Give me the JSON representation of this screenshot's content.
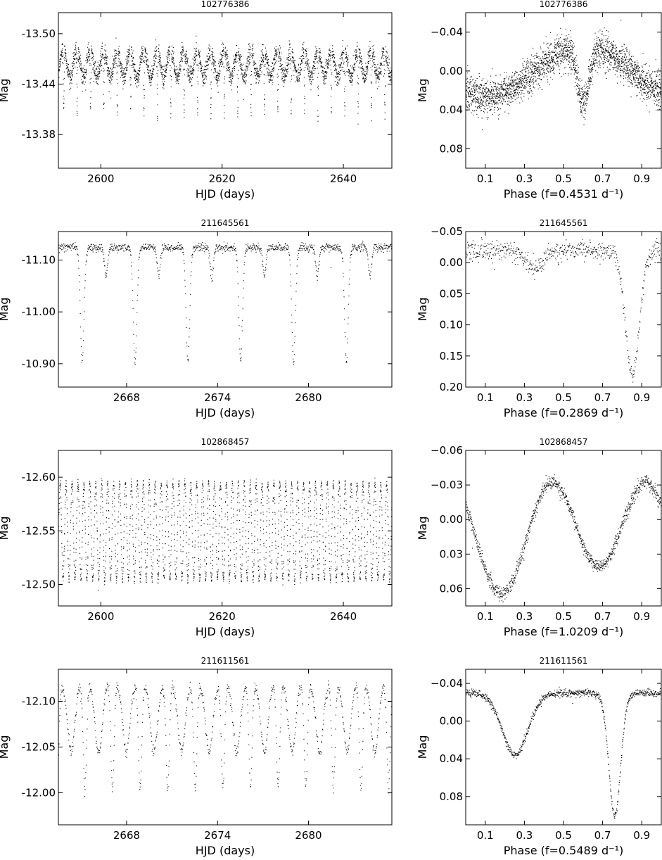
{
  "figure": {
    "layout": "4 rows x 2 columns; left: light curves, right: phase-folded curves",
    "point_color": "#000000"
  },
  "chart_data": [
    {
      "type": "scatter",
      "panel": "row1-left",
      "title": "102776386",
      "xlabel": "HJD (days)",
      "ylabel": "Mag",
      "xlim": [
        2593,
        2648
      ],
      "ylim": [
        -13.34,
        -13.525
      ],
      "y_inverted": true,
      "xticks": [
        2600,
        2620,
        2640
      ],
      "xtick_labels": [
        "2600",
        "2620",
        "2640"
      ],
      "yticks": [
        -13.5,
        -13.44,
        -13.38
      ],
      "ytick_labels": [
        "-13.50",
        "-13.44",
        "-13.38"
      ],
      "series": [
        {
          "kind": "lightcurve",
          "generator": {
            "x_start": 2593,
            "x_end": 2648,
            "step": 0.017
          },
          "period": 2.207,
          "phase0": 0.35,
          "base": -13.465,
          "amplitude": 0.016,
          "minima": [
            {
              "phase": 0.62,
              "depth": 0.075,
              "width": 0.025
            }
          ],
          "noise": 0.006
        }
      ]
    },
    {
      "type": "scatter",
      "panel": "row1-right",
      "title": "102776386",
      "xlabel": "Phase (f=0.4531 d⁻¹)",
      "ylabel": "Mag",
      "xlim": [
        0.0,
        1.0
      ],
      "ylim": [
        0.1,
        -0.06
      ],
      "y_inverted": true,
      "xticks": [
        0.1,
        0.3,
        0.5,
        0.7,
        0.9
      ],
      "xtick_labels": [
        "0.1",
        "0.3",
        "0.5",
        "0.7",
        "0.9"
      ],
      "yticks": [
        -0.04,
        0.0,
        0.04,
        0.08
      ],
      "ytick_labels": [
        "−0.04",
        "0.00",
        "0.04",
        "0.08"
      ],
      "series": [
        {
          "kind": "phase",
          "generator": {
            "x_start": 0.0,
            "x_end": 1.0,
            "step": 0.0004
          },
          "base": 0.0,
          "amplitude": 0.026,
          "minima": [
            {
              "phase": 0.6,
              "depth": 0.058,
              "width": 0.03
            }
          ],
          "noise": 0.009
        }
      ]
    },
    {
      "type": "scatter",
      "panel": "row2-left",
      "title": "211645561",
      "xlabel": "HJD (days)",
      "ylabel": "Mag",
      "xlim": [
        2663.5,
        2685.5
      ],
      "ylim": [
        -10.855,
        -11.155
      ],
      "y_inverted": true,
      "xticks": [
        2668,
        2674,
        2680
      ],
      "xtick_labels": [
        "2668",
        "2674",
        "2680"
      ],
      "yticks": [
        -11.1,
        -11.0,
        -10.9
      ],
      "ytick_labels": [
        "-11.10",
        "-11.00",
        "-10.90"
      ],
      "series": [
        {
          "kind": "lightcurve",
          "generator": {
            "x_start": 2663.5,
            "x_end": 2685.5,
            "step": 0.02
          },
          "period": 3.486,
          "phase0": 0.5,
          "base": -11.125,
          "amplitude": 0.0,
          "minima": [
            {
              "phase": 0.0,
              "depth": 0.22,
              "width": 0.035
            },
            {
              "phase": 0.45,
              "depth": 0.055,
              "width": 0.03
            }
          ],
          "noise": 0.004
        }
      ]
    },
    {
      "type": "scatter",
      "panel": "row2-right",
      "title": "211645561",
      "xlabel": "Phase (f=0.2869 d⁻¹)",
      "ylabel": "Mag",
      "xlim": [
        0.0,
        1.0
      ],
      "ylim": [
        0.2,
        -0.05
      ],
      "y_inverted": true,
      "xticks": [
        0.1,
        0.3,
        0.5,
        0.7,
        0.9
      ],
      "xtick_labels": [
        "0.1",
        "0.3",
        "0.5",
        "0.7",
        "0.9"
      ],
      "yticks": [
        -0.05,
        0.0,
        0.05,
        0.1,
        0.15,
        0.2
      ],
      "ytick_labels": [
        "−0.05",
        "0.00",
        "0.05",
        "0.10",
        "0.15",
        "0.20"
      ],
      "series": [
        {
          "kind": "phase",
          "generator": {
            "x_start": 0.0,
            "x_end": 1.0,
            "step": 0.0016
          },
          "base": -0.02,
          "amplitude": 0.0,
          "minima": [
            {
              "phase": 0.85,
              "depth": 0.2,
              "width": 0.035
            },
            {
              "phase": 0.35,
              "depth": 0.03,
              "width": 0.04
            }
          ],
          "noise": 0.008
        }
      ]
    },
    {
      "type": "scatter",
      "panel": "row3-left",
      "title": "102868457",
      "xlabel": "HJD (days)",
      "ylabel": "Mag",
      "xlim": [
        2593,
        2648
      ],
      "ylim": [
        -12.48,
        -12.625
      ],
      "y_inverted": true,
      "xticks": [
        2600,
        2620,
        2640
      ],
      "xtick_labels": [
        "2600",
        "2620",
        "2640"
      ],
      "yticks": [
        -12.6,
        -12.55,
        -12.5
      ],
      "ytick_labels": [
        "-12.60",
        "-12.55",
        "-12.50"
      ],
      "series": [
        {
          "kind": "sinusoid",
          "generator": {
            "x_start": 2593,
            "x_end": 2648,
            "step": 0.021
          },
          "period": 0.9795,
          "base": -12.55,
          "amplitude": 0.045,
          "noise": 0.002
        }
      ]
    },
    {
      "type": "scatter",
      "panel": "row3-right",
      "title": "102868457",
      "xlabel": "Phase (f=1.0209 d⁻¹)",
      "ylabel": "Mag",
      "xlim": [
        0.0,
        1.0
      ],
      "ylim": [
        0.075,
        -0.06
      ],
      "y_inverted": true,
      "xticks": [
        0.1,
        0.3,
        0.5,
        0.7,
        0.9
      ],
      "xtick_labels": [
        "0.1",
        "0.3",
        "0.5",
        "0.7",
        "0.9"
      ],
      "yticks": [
        -0.06,
        -0.03,
        0.0,
        0.03,
        0.06
      ],
      "ytick_labels": [
        "−0.06",
        "−0.03",
        "0.00",
        "0.03",
        "0.06"
      ],
      "series": [
        {
          "kind": "phase-sine",
          "generator": {
            "x_start": 0.0,
            "x_end": 1.0,
            "step": 0.0009
          },
          "base": 0.01,
          "amplitude": 0.047,
          "noise": 0.003
        }
      ]
    },
    {
      "type": "scatter",
      "panel": "row4-left",
      "title": "211611561",
      "xlabel": "HJD (days)",
      "ylabel": "Mag",
      "xlim": [
        2663.5,
        2685.5
      ],
      "ylim": [
        -11.965,
        -12.135
      ],
      "y_inverted": true,
      "xticks": [
        2668,
        2674,
        2680
      ],
      "xtick_labels": [
        "2668",
        "2674",
        "2680"
      ],
      "yticks": [
        -12.1,
        -12.05,
        -12.0
      ],
      "ytick_labels": [
        "-12.10",
        "-12.05",
        "-12.00"
      ],
      "series": [
        {
          "kind": "lightcurve",
          "generator": {
            "x_start": 2663.5,
            "x_end": 2685.5,
            "step": 0.022
          },
          "period": 1.822,
          "phase0": 0.2,
          "base": -12.12,
          "amplitude": 0.0,
          "minima": [
            {
              "phase": 0.0,
              "depth": 0.115,
              "width": 0.06
            },
            {
              "phase": 0.5,
              "depth": 0.075,
              "width": 0.13
            }
          ],
          "noise": 0.003
        }
      ]
    },
    {
      "type": "scatter",
      "panel": "row4-right",
      "title": "211611561",
      "xlabel": "Phase (f=0.5489 d⁻¹)",
      "ylabel": "Mag",
      "xlim": [
        0.0,
        1.0
      ],
      "ylim": [
        0.11,
        -0.055
      ],
      "y_inverted": true,
      "xticks": [
        0.1,
        0.3,
        0.5,
        0.7,
        0.9
      ],
      "xtick_labels": [
        "0.1",
        "0.3",
        "0.5",
        "0.7",
        "0.9"
      ],
      "yticks": [
        -0.04,
        0.0,
        0.04,
        0.08
      ],
      "ytick_labels": [
        "−0.04",
        "0.00",
        "0.04",
        "0.08"
      ],
      "series": [
        {
          "kind": "phase",
          "generator": {
            "x_start": 0.0,
            "x_end": 1.0,
            "step": 0.0011
          },
          "base": -0.03,
          "amplitude": 0.0,
          "minima": [
            {
              "phase": 0.76,
              "depth": 0.13,
              "width": 0.03
            },
            {
              "phase": 0.25,
              "depth": 0.065,
              "width": 0.065
            }
          ],
          "noise": 0.002
        }
      ]
    }
  ]
}
